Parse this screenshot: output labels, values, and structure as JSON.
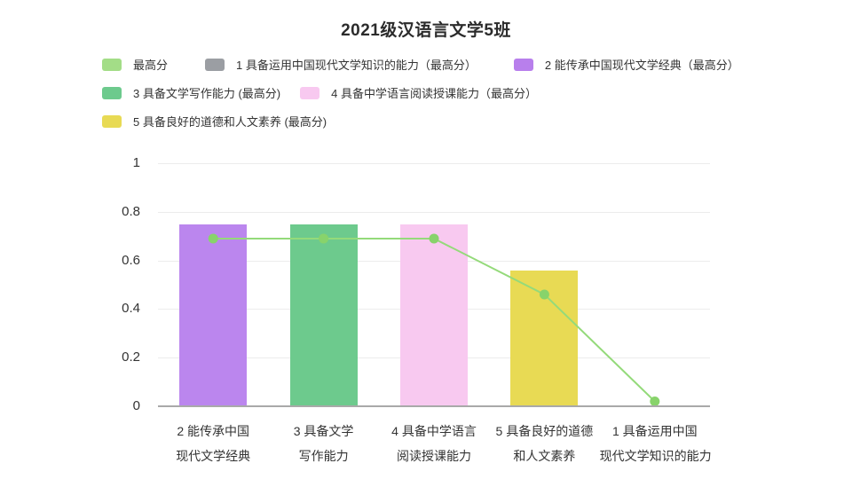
{
  "header": {
    "title": "2021级汉语言文学5班"
  },
  "legend": {
    "rows": [
      [
        {
          "label": "最高分",
          "color": "#a3dd87"
        },
        {
          "label": "1 具备运用中国现代文学知识的能力（最高分）",
          "color": "#9b9ea3"
        },
        {
          "label": "2 能传承中国现代文学经典（最高分）",
          "color": "#b87fec"
        }
      ],
      [
        {
          "label": "3 具备文学写作能力 (最高分)",
          "color": "#6dca8d"
        },
        {
          "label": "4 具备中学语言阅读授课能力（最高分）",
          "color": "#f8c9f0"
        }
      ],
      [
        {
          "label": "5 具备良好的道德和人文素养 (最高分)",
          "color": "#e8da54"
        }
      ]
    ]
  },
  "chart_data": {
    "type": "bar",
    "title": "2021级汉语言文学5班",
    "categories": [
      "2 能传承中国现代文学经典",
      "3 具备文学写作能力",
      "4 具备中学语言阅读授课能力",
      "5 具备良好的道德和人文素养",
      "1 具备运用中国现代文学知识的能力"
    ],
    "category_label_lines": [
      [
        "2 能传承中国",
        "现代文学经典"
      ],
      [
        "3 具备文学",
        "写作能力"
      ],
      [
        "4 具备中学语言",
        "阅读授课能力"
      ],
      [
        "5 具备良好的道德",
        "和人文素养"
      ],
      [
        "1 具备运用中国",
        "现代文学知识的能力"
      ]
    ],
    "bar_series": {
      "note": "one colored bar per indicator (最高分 of each indicator)",
      "values": [
        0.75,
        0.75,
        0.75,
        0.56,
        0
      ],
      "colors": [
        "#bb86ee",
        "#6dca8d",
        "#f8c9f0",
        "#e8da54",
        "#9b9ea3"
      ],
      "names": [
        "2 能传承中国现代文学经典（最高分）",
        "3 具备文学写作能力 (最高分)",
        "4 具备中学语言阅读授课能力（最高分）",
        "5 具备良好的道德和人文素养 (最高分)",
        "1 具备运用中国现代文学知识的能力（最高分）"
      ]
    },
    "line_series": {
      "name": "最高分",
      "values": [
        0.69,
        0.69,
        0.69,
        0.46,
        0.02
      ],
      "color": "#94da7a",
      "point_color": "#88d36b"
    },
    "xlabel": "",
    "ylabel": "",
    "ylim": [
      0,
      1
    ],
    "yticks": [
      0,
      0.2,
      0.4,
      0.6,
      0.8,
      1
    ],
    "ytick_labels": [
      "0",
      "0.2",
      "0.4",
      "0.6",
      "0.8",
      "1"
    ],
    "grid": true,
    "legend_position": "top-left",
    "colors": {
      "grid": "#ececec",
      "axis": "#a9a9a9",
      "text": "#333333"
    }
  }
}
